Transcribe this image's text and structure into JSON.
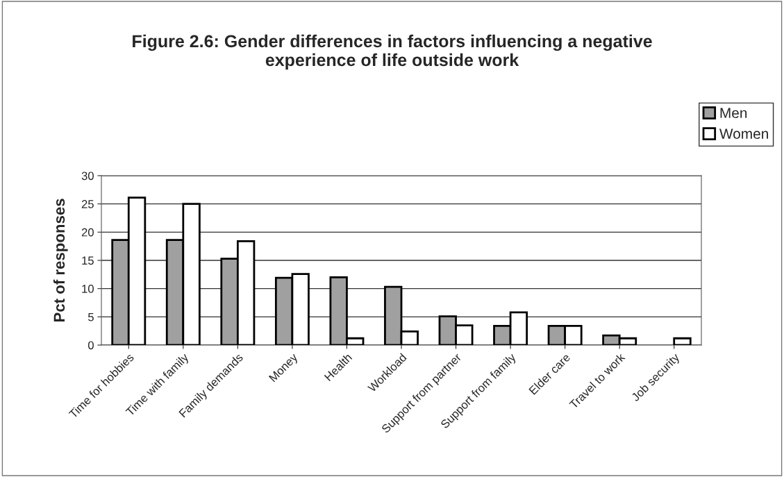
{
  "chart_data": {
    "type": "bar",
    "title": "Figure 2.6: Gender differences in factors influencing a negative\nexperience of life outside work",
    "ylabel": "Pct of responses",
    "categories": [
      "Time for hobbies",
      "Time with family",
      "Family demands",
      "Money",
      "Health",
      "Workload",
      "Support from partner",
      "Support from family",
      "Elder care",
      "Travel to work",
      "Job security"
    ],
    "series": [
      {
        "name": "Men",
        "color": "#a0a0a0",
        "values": [
          18.6,
          18.6,
          15.3,
          11.9,
          12.0,
          10.3,
          5.1,
          3.4,
          3.4,
          1.7,
          null
        ]
      },
      {
        "name": "Women",
        "color": "#ffffff",
        "values": [
          26.1,
          25.0,
          18.4,
          12.6,
          1.2,
          2.4,
          3.5,
          5.8,
          3.4,
          1.2,
          1.2
        ]
      }
    ],
    "ylim": [
      0,
      30
    ],
    "yticks": [
      0,
      5,
      10,
      15,
      20,
      25,
      30
    ],
    "grid": "y",
    "legend": "top right"
  }
}
